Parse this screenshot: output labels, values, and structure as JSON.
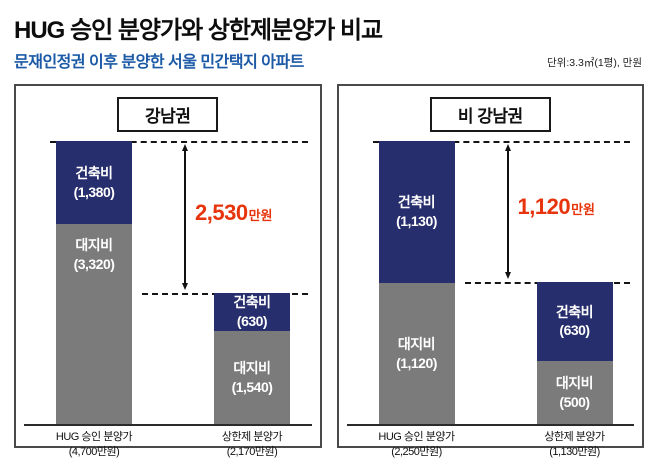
{
  "page": {
    "title": "HUG 승인 분양가와 상한제분양가 비교",
    "subtitle": "문재인정권 이후 분양한 서울 민간택지 아파트",
    "unit_note": "단위:3.3㎡(1평), 만원"
  },
  "colors": {
    "construction_segment": "#272e6d",
    "land_segment": "#7b7b7b",
    "difference_text": "#e8340c",
    "subtitle_text": "#1c5aa6"
  },
  "chart_data": {
    "type": "bar",
    "stacked": true,
    "unit": "만원 per 3.3㎡(1평)",
    "legend_position": "none",
    "grid": false,
    "panels": [
      {
        "header": "강남권",
        "difference": {
          "display": "2,530",
          "unit": "만원",
          "value": 2530
        },
        "bars": [
          {
            "name": "HUG 승인 분양가",
            "caption_line1": "HUG 승인 분양가",
            "caption_line2": "(4,700만원)",
            "total": 4700,
            "segments": [
              {
                "label": "건축비",
                "value_display": "(1,380)",
                "value": 1380
              },
              {
                "label": "대지비",
                "value_display": "(3,320)",
                "value": 3320
              }
            ]
          },
          {
            "name": "상한제 분양가",
            "caption_line1": "상한제 분양가",
            "caption_line2": "(2,170만원)",
            "total": 2170,
            "segments": [
              {
                "label": "건축비",
                "value_display": "(630)",
                "value": 630
              },
              {
                "label": "대지비",
                "value_display": "(1,540)",
                "value": 1540
              }
            ]
          }
        ]
      },
      {
        "header": "비 강남권",
        "difference": {
          "display": "1,120",
          "unit": "만원",
          "value": 1120
        },
        "bars": [
          {
            "name": "HUG 승인 분양가",
            "caption_line1": "HUG 승인 분양가",
            "caption_line2": "(2,250만원)",
            "total": 2250,
            "segments": [
              {
                "label": "건축비",
                "value_display": "(1,130)",
                "value": 1130
              },
              {
                "label": "대지비",
                "value_display": "(1,120)",
                "value": 1120
              }
            ]
          },
          {
            "name": "상한제 분양가",
            "caption_line1": "상한제 분양가",
            "caption_line2": "(1,130만원)",
            "total": 1130,
            "segments": [
              {
                "label": "건축비",
                "value_display": "(630)",
                "value": 630
              },
              {
                "label": "대지비",
                "value_display": "(500)",
                "value": 500
              }
            ]
          }
        ]
      }
    ]
  }
}
